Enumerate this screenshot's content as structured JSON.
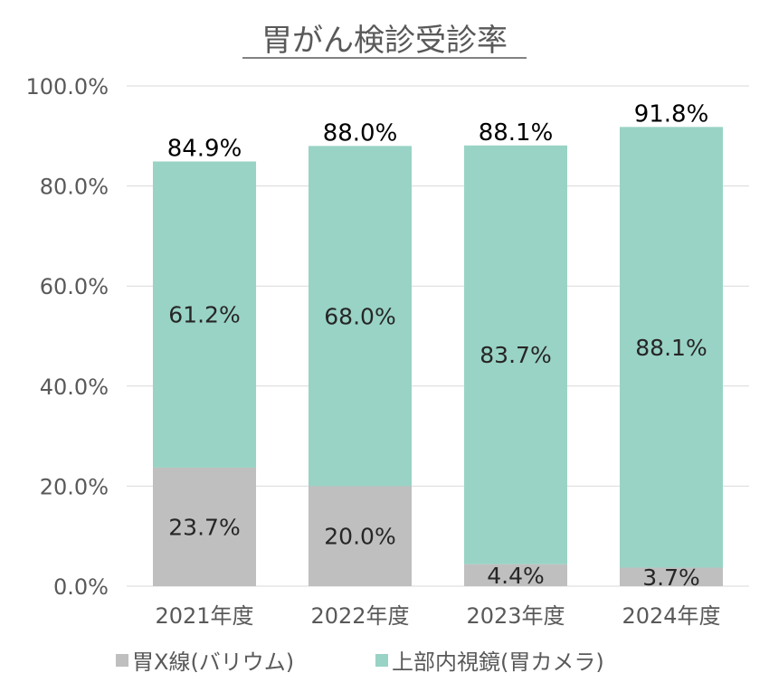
{
  "chart_data": {
    "type": "bar",
    "stacked": true,
    "title": "胃がん検診受診率",
    "xlabel": "",
    "ylabel": "",
    "ylim": [
      0,
      100
    ],
    "yticks": [
      "0.0%",
      "20.0%",
      "40.0%",
      "60.0%",
      "80.0%",
      "100.0%"
    ],
    "ytick_values": [
      0,
      20,
      40,
      60,
      80,
      100
    ],
    "grid": true,
    "legend_position": "bottom",
    "categories": [
      "2021年度",
      "2022年度",
      "2023年度",
      "2024年度"
    ],
    "series": [
      {
        "name": "胃X線(バリウム)",
        "color": "#bfbfbf",
        "values": [
          23.7,
          20.0,
          4.4,
          3.7
        ],
        "labels": [
          "23.7%",
          "20.0%",
          "4.4%",
          "3.7%"
        ]
      },
      {
        "name": "上部内視鏡(胃カメラ)",
        "color": "#99d3c5",
        "values": [
          61.2,
          68.0,
          83.7,
          88.1
        ],
        "labels": [
          "61.2%",
          "68.0%",
          "83.7%",
          "88.1%"
        ]
      }
    ],
    "totals": [
      84.9,
      88.0,
      88.1,
      91.8
    ],
    "total_labels": [
      "84.9%",
      "88.0%",
      "88.1%",
      "91.8%"
    ]
  }
}
